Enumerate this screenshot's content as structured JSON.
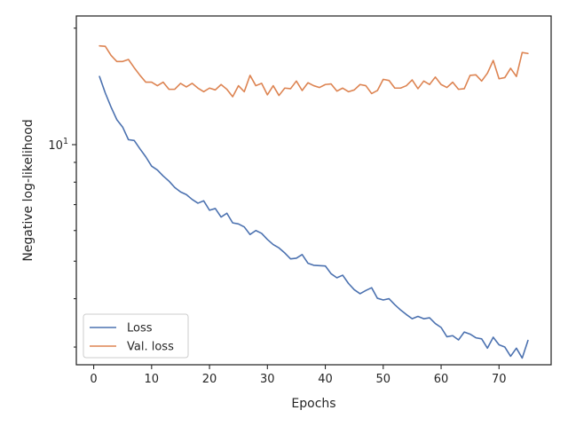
{
  "chart_data": {
    "type": "line",
    "xlabel": "Epochs",
    "ylabel": "Negative log-likelihood",
    "x_scale": "linear",
    "y_scale": "log",
    "xlim": [
      -3,
      79
    ],
    "ylim": [
      2.7,
      21.5
    ],
    "x_ticks": [
      0,
      10,
      20,
      30,
      40,
      50,
      60,
      70
    ],
    "x_tick_labels": [
      "0",
      "10",
      "20",
      "30",
      "40",
      "50",
      "60",
      "70"
    ],
    "y_ticks": [
      10
    ],
    "y_tick_label_base": "10",
    "y_tick_label_exp": "1",
    "grid": false,
    "legend_position": "lower-left",
    "x": [
      1,
      2,
      3,
      4,
      5,
      6,
      7,
      8,
      9,
      10,
      11,
      12,
      13,
      14,
      15,
      16,
      17,
      18,
      19,
      20,
      21,
      22,
      23,
      24,
      25,
      26,
      27,
      28,
      29,
      30,
      31,
      32,
      33,
      34,
      35,
      36,
      37,
      38,
      39,
      40,
      41,
      42,
      43,
      44,
      45,
      46,
      47,
      48,
      49,
      50,
      51,
      52,
      53,
      54,
      55,
      56,
      57,
      58,
      59,
      60,
      61,
      62,
      63,
      64,
      65,
      66,
      67,
      68,
      69,
      70,
      71,
      72,
      73,
      74,
      75
    ],
    "series": [
      {
        "name": "Loss",
        "color": "#4c72b0",
        "values": [
          15.0,
          13.6,
          12.5,
          11.6,
          11.1,
          10.3,
          10.25,
          9.75,
          9.3,
          8.8,
          8.6,
          8.3,
          8.05,
          7.75,
          7.55,
          7.43,
          7.22,
          7.06,
          7.16,
          6.77,
          6.84,
          6.5,
          6.65,
          6.28,
          6.24,
          6.13,
          5.86,
          6.0,
          5.9,
          5.69,
          5.52,
          5.41,
          5.25,
          5.07,
          5.09,
          5.2,
          4.94,
          4.88,
          4.87,
          4.86,
          4.64,
          4.53,
          4.6,
          4.38,
          4.22,
          4.12,
          4.2,
          4.27,
          4.01,
          3.97,
          4.0,
          3.86,
          3.74,
          3.64,
          3.55,
          3.6,
          3.55,
          3.57,
          3.45,
          3.37,
          3.19,
          3.21,
          3.13,
          3.28,
          3.24,
          3.17,
          3.15,
          2.98,
          3.18,
          3.04,
          3.0,
          2.84,
          2.98,
          2.81,
          3.12
        ]
      },
      {
        "name": "Val. loss",
        "color": "#dd8452",
        "values": [
          18.0,
          17.95,
          17.0,
          16.4,
          16.4,
          16.6,
          15.8,
          15.1,
          14.5,
          14.5,
          14.2,
          14.5,
          13.9,
          13.9,
          14.4,
          14.1,
          14.4,
          14.0,
          13.7,
          14.0,
          13.85,
          14.3,
          13.9,
          13.3,
          14.2,
          13.7,
          15.1,
          14.2,
          14.4,
          13.45,
          14.2,
          13.4,
          14.0,
          13.95,
          14.6,
          13.8,
          14.45,
          14.2,
          14.05,
          14.3,
          14.35,
          13.75,
          14.0,
          13.7,
          13.85,
          14.3,
          14.2,
          13.55,
          13.8,
          14.75,
          14.65,
          14.0,
          14.0,
          14.2,
          14.7,
          13.95,
          14.6,
          14.3,
          14.95,
          14.3,
          14.05,
          14.5,
          13.9,
          13.95,
          15.1,
          15.15,
          14.6,
          15.3,
          16.5,
          14.8,
          14.9,
          15.75,
          15.0,
          17.3,
          17.2
        ]
      }
    ]
  }
}
